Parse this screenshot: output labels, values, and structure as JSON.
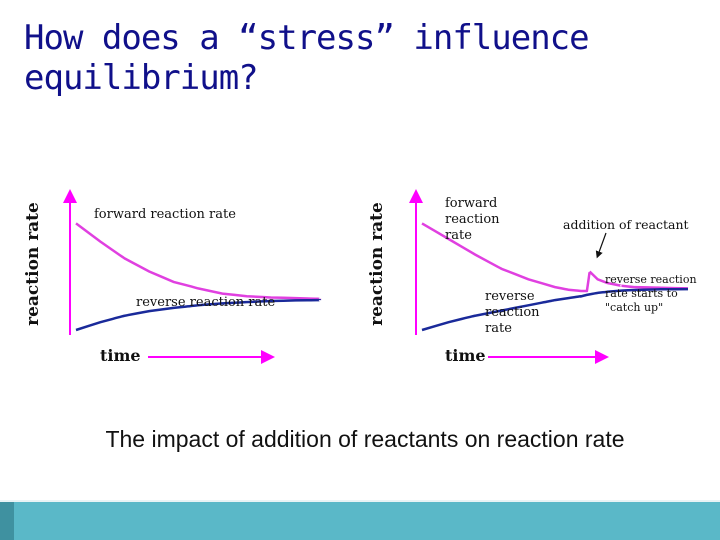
{
  "slide": {
    "title_line1": "How does a “stress” influence",
    "title_line2": "equilibrium?",
    "caption": "The impact of addition of reactants on reaction rate"
  },
  "colors": {
    "title": "#10108a",
    "forward": "#e040e0",
    "reverse": "#1a2a9a",
    "axis": "#ff00ff",
    "footer": "#5ab8c8"
  },
  "chart_data": [
    {
      "type": "line",
      "title": "",
      "xlabel": "time",
      "ylabel": "reaction rate",
      "series": [
        {
          "name": "forward reaction rate",
          "x": [
            0,
            10,
            20,
            30,
            40,
            50,
            60,
            70,
            80,
            90,
            100
          ],
          "y": [
            82,
            68,
            55,
            45,
            37,
            32,
            28,
            26,
            25,
            24.5,
            24
          ]
        },
        {
          "name": "reverse reaction rate",
          "x": [
            0,
            10,
            20,
            30,
            40,
            50,
            60,
            70,
            80,
            90,
            100
          ],
          "y": [
            0,
            6,
            11,
            14.5,
            17,
            19,
            20.5,
            21.5,
            22.3,
            22.8,
            23
          ]
        }
      ],
      "annotations": []
    },
    {
      "type": "line",
      "title": "",
      "xlabel": "time",
      "ylabel": "reaction rate",
      "series": [
        {
          "name": "forward reaction rate",
          "x": [
            0,
            10,
            20,
            30,
            40,
            50,
            55,
            60,
            62,
            63,
            66,
            70,
            75,
            80,
            90,
            100
          ],
          "y": [
            82,
            70,
            58,
            47,
            39,
            33,
            31,
            30,
            30,
            45,
            39,
            36,
            34,
            33,
            32.5,
            32
          ]
        },
        {
          "name": "reverse reaction rate",
          "x": [
            0,
            10,
            20,
            30,
            40,
            50,
            60,
            62,
            66,
            70,
            75,
            80,
            90,
            100
          ],
          "y": [
            0,
            6,
            11,
            15,
            19,
            23,
            26,
            27,
            28.5,
            29.5,
            30.3,
            30.8,
            31.3,
            31.5
          ]
        }
      ],
      "annotations": [
        {
          "text": "addition of reactant",
          "x": 63
        },
        {
          "text": "reverse reaction rate starts to \"catch up\"",
          "x": 66
        }
      ]
    }
  ],
  "labels": {
    "left": {
      "ylabel": "reaction rate",
      "xlabel": "time",
      "forward": "forward reaction rate",
      "reverse": "reverse reaction rate"
    },
    "right": {
      "ylabel": "reaction rate",
      "xlabel": "time",
      "forward_l1": "forward",
      "forward_l2": "reaction",
      "forward_l3": "rate",
      "reverse_l1": "reverse",
      "reverse_l2": "reaction",
      "reverse_l3": "rate",
      "addition": "addition of reactant",
      "catchup_l1": "reverse reaction",
      "catchup_l2": "rate starts to",
      "catchup_l3": "\"catch up\""
    }
  }
}
